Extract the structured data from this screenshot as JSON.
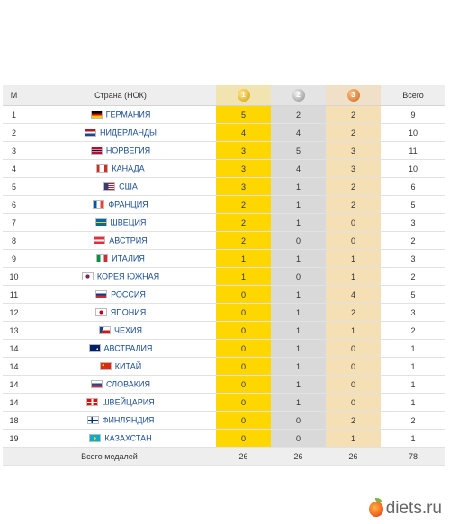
{
  "table": {
    "headers": {
      "rank": "М",
      "country": "Страна (НОК)",
      "gold": "1",
      "silver": "2",
      "bronze": "3",
      "total": "Всего"
    },
    "rows": [
      {
        "rank": "1",
        "country": "ГЕРМАНИЯ",
        "gold": "5",
        "silver": "2",
        "bronze": "2",
        "total": "9"
      },
      {
        "rank": "2",
        "country": "НИДЕРЛАНДЫ",
        "gold": "4",
        "silver": "4",
        "bronze": "2",
        "total": "10"
      },
      {
        "rank": "3",
        "country": "НОРВЕГИЯ",
        "gold": "3",
        "silver": "5",
        "bronze": "3",
        "total": "11"
      },
      {
        "rank": "4",
        "country": "КАНАДА",
        "gold": "3",
        "silver": "4",
        "bronze": "3",
        "total": "10"
      },
      {
        "rank": "5",
        "country": "США",
        "gold": "3",
        "silver": "1",
        "bronze": "2",
        "total": "6"
      },
      {
        "rank": "6",
        "country": "ФРАНЦИЯ",
        "gold": "2",
        "silver": "1",
        "bronze": "2",
        "total": "5"
      },
      {
        "rank": "7",
        "country": "ШВЕЦИЯ",
        "gold": "2",
        "silver": "1",
        "bronze": "0",
        "total": "3"
      },
      {
        "rank": "8",
        "country": "АВСТРИЯ",
        "gold": "2",
        "silver": "0",
        "bronze": "0",
        "total": "2"
      },
      {
        "rank": "9",
        "country": "ИТАЛИЯ",
        "gold": "1",
        "silver": "1",
        "bronze": "1",
        "total": "3"
      },
      {
        "rank": "10",
        "country": "КОРЕЯ ЮЖНАЯ",
        "gold": "1",
        "silver": "0",
        "bronze": "1",
        "total": "2"
      },
      {
        "rank": "11",
        "country": "РОССИЯ",
        "gold": "0",
        "silver": "1",
        "bronze": "4",
        "total": "5"
      },
      {
        "rank": "12",
        "country": "ЯПОНИЯ",
        "gold": "0",
        "silver": "1",
        "bronze": "2",
        "total": "3"
      },
      {
        "rank": "13",
        "country": "ЧЕХИЯ",
        "gold": "0",
        "silver": "1",
        "bronze": "1",
        "total": "2"
      },
      {
        "rank": "14",
        "country": "АВСТРАЛИЯ",
        "gold": "0",
        "silver": "1",
        "bronze": "0",
        "total": "1"
      },
      {
        "rank": "14",
        "country": "КИТАЙ",
        "gold": "0",
        "silver": "1",
        "bronze": "0",
        "total": "1"
      },
      {
        "rank": "14",
        "country": "СЛОВАКИЯ",
        "gold": "0",
        "silver": "1",
        "bronze": "0",
        "total": "1"
      },
      {
        "rank": "14",
        "country": "ШВЕЙЦАРИЯ",
        "gold": "0",
        "silver": "1",
        "bronze": "0",
        "total": "1"
      },
      {
        "rank": "18",
        "country": "ФИНЛЯНДИЯ",
        "gold": "0",
        "silver": "0",
        "bronze": "2",
        "total": "2"
      },
      {
        "rank": "19",
        "country": "КАЗАХСТАН",
        "gold": "0",
        "silver": "0",
        "bronze": "1",
        "total": "1"
      }
    ],
    "footer": {
      "label": "Всего медалей",
      "gold": "26",
      "silver": "26",
      "bronze": "26",
      "total": "78"
    }
  },
  "flags": [
    "linear-gradient(#000 33%, #dd0000 33% 66%, #ffce00 66%)",
    "linear-gradient(#ae1c28 33%, #ffffff 33% 66%, #21468b 66%)",
    "linear-gradient(#ba0c2f 35%, #ffffff 35% 40%, #00205b 40% 60%, #ffffff 60% 65%, #ba0c2f 65%)",
    "linear-gradient(90deg, #d52b1e 25%, #ffffff 25% 75%, #d52b1e 75%)",
    "linear-gradient(90deg, #3c3b6e 40%, transparent 40%), repeating-linear-gradient(#b22234 0 1px, #ffffff 1px 2px)",
    "linear-gradient(90deg, #0055a4 33%, #ffffff 33% 66%, #ef4135 66%)",
    "linear-gradient(#006aa7 40%, #fecc00 40% 60%, #006aa7 60%)",
    "linear-gradient(#ed2939 33%, #ffffff 33% 66%, #ed2939 66%)",
    "linear-gradient(90deg, #009246 33%, #ffffff 33% 66%, #ce2b37 66%)",
    "radial-gradient(circle, #c60c30 22%, #003478 23% 32%, #ffffff 33%)",
    "linear-gradient(#ffffff 33%, #0039a6 33% 66%, #d52b1e 66%)",
    "radial-gradient(circle, #bc002d 30%, #ffffff 32%)",
    "linear-gradient(120deg, #11457e 30%, transparent 30%), linear-gradient(#ffffff 50%, #d7141a 50%)",
    "radial-gradient(circle at 75% 60%, #ffffff 8%, transparent 10%), linear-gradient(#012169, #012169)",
    "radial-gradient(circle at 25% 30%, #ffde00 12%, transparent 14%), linear-gradient(#de2910, #de2910)",
    "linear-gradient(#ffffff 33%, #0b4ea2 33% 66%, #ee1c25 66%)",
    "linear-gradient(90deg, transparent 42%, #ffffff 42% 58%, transparent 58%), linear-gradient(transparent 40%, #ffffff 40% 60%, transparent 60%), linear-gradient(#ff0000, #ff0000)",
    "linear-gradient(90deg, transparent 30%, #003580 30% 45%, transparent 45%), linear-gradient(transparent 40%, #003580 40% 60%, transparent 60%), linear-gradient(#ffffff, #ffffff)",
    "radial-gradient(circle, #fec50c 20%, #00afca 22%)"
  ],
  "watermark": {
    "text": "diets.ru"
  },
  "colors": {
    "gold": "#ffd700",
    "silver": "#d9d9d9",
    "bronze": "#f5dfb5",
    "link": "#1a4d8f"
  }
}
